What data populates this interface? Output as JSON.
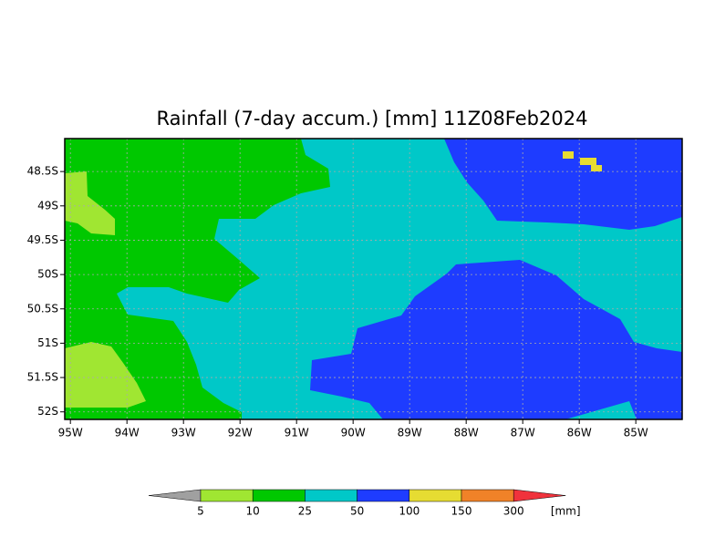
{
  "map": {
    "title": "Rainfall (7-day accum.) [mm] 11Z08Feb2024",
    "xlim": [
      -95.1,
      -84.18
    ],
    "ylim": [
      -52.11,
      -48.02
    ],
    "x_ticks": [
      {
        "value": -95,
        "label": "95W"
      },
      {
        "value": -94,
        "label": "94W"
      },
      {
        "value": -93,
        "label": "93W"
      },
      {
        "value": -92,
        "label": "92W"
      },
      {
        "value": -91,
        "label": "91W"
      },
      {
        "value": -90,
        "label": "90W"
      },
      {
        "value": -89,
        "label": "89W"
      },
      {
        "value": -88,
        "label": "88W"
      },
      {
        "value": -87,
        "label": "87W"
      },
      {
        "value": -86,
        "label": "86W"
      },
      {
        "value": -85,
        "label": "85W"
      }
    ],
    "y_ticks": [
      {
        "value": -48.5,
        "label": "48.5S"
      },
      {
        "value": -49,
        "label": "49S"
      },
      {
        "value": -49.5,
        "label": "49.5S"
      },
      {
        "value": -50,
        "label": "50S"
      },
      {
        "value": -50.5,
        "label": "50.5S"
      },
      {
        "value": -51,
        "label": "51S"
      },
      {
        "value": -51.5,
        "label": "51.5S"
      },
      {
        "value": -52,
        "label": "52S"
      }
    ],
    "colorbar": {
      "levels": [
        5,
        10,
        25,
        50,
        100,
        150,
        300
      ],
      "colors": [
        "#a0a0a0",
        "#a0e632",
        "#00c800",
        "#00c8c8",
        "#1e3cff",
        "#e6dc32",
        "#f08228",
        "#f0323c"
      ],
      "unit": "[mm]"
    }
  }
}
